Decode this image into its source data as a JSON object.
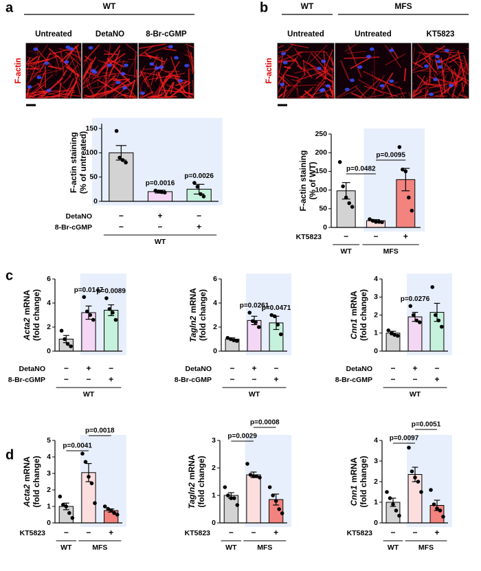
{
  "figure": {
    "panels": [
      "a",
      "b",
      "c",
      "d"
    ],
    "micrographs": [
      {
        "stain": "F-actin",
        "headers": [
          "WT"
        ],
        "columns": [
          "Untreated",
          "DetaNO",
          "8-Br-cGMP"
        ]
      },
      {
        "stain": "F-actin",
        "headers": [
          "WT",
          "MFS"
        ],
        "columns": [
          "Untreated",
          "Untreated",
          "KT5823"
        ]
      }
    ]
  },
  "chart_data": [
    {
      "type": "bar",
      "ylabel": {
        "text": "F-actin staining",
        "line2": "(% of untreated)"
      },
      "ylim": [
        0,
        160
      ],
      "yticks": [
        0,
        50,
        100,
        150
      ],
      "values": [
        100,
        20,
        25
      ],
      "errors": [
        15,
        3,
        10
      ],
      "points": [
        [
          145,
          90,
          85,
          80
        ],
        [
          22,
          20,
          19,
          18
        ],
        [
          38,
          30,
          15,
          10
        ]
      ],
      "colors": [
        "#d3d3d3",
        "#f4d7f4",
        "#c6f1dd"
      ],
      "shaded": [
        0,
        1,
        2
      ],
      "pvalues": [
        {
          "label": "p=0.0016",
          "at": 1
        },
        {
          "label": "p=0.0026",
          "at": 2
        }
      ],
      "conditions": [
        {
          "label": "DetaNO",
          "signs": [
            "−",
            "+",
            "−"
          ]
        },
        {
          "label": "8-Br-cGMP",
          "signs": [
            "−",
            "−",
            "+"
          ]
        }
      ],
      "groups": [
        {
          "label": "WT",
          "from": 0,
          "to": 2
        }
      ]
    },
    {
      "type": "bar",
      "ylabel": {
        "text": "F-actin staining",
        "line2": "(% of WT)"
      },
      "ylim": [
        0,
        250
      ],
      "yticks": [
        0,
        50,
        100,
        150,
        200,
        250
      ],
      "values": [
        98,
        18,
        128
      ],
      "errors": [
        22,
        3,
        30
      ],
      "points": [
        [
          175,
          110,
          80,
          65,
          55
        ],
        [
          22,
          18,
          15,
          15,
          14
        ],
        [
          215,
          155,
          150,
          80,
          45
        ]
      ],
      "colors": [
        "#d3d3d3",
        "#fcdede",
        "#f2837f"
      ],
      "shaded": [
        1,
        2
      ],
      "pvalues": [
        {
          "label": "p=0.0482",
          "from": 0,
          "to": 1
        },
        {
          "label": "p=0.0095",
          "from": 1,
          "to": 2
        }
      ],
      "conditions": [
        {
          "label": "KT5823",
          "signs": [
            "−",
            "−",
            "+"
          ]
        }
      ],
      "groups": [
        {
          "label": "WT",
          "from": 0,
          "to": 0
        },
        {
          "label": "MFS",
          "from": 1,
          "to": 2
        }
      ]
    },
    {
      "type": "bar",
      "ylabel": {
        "gene": "Acta2",
        "text": "mRNA",
        "line2": "(fold change)"
      },
      "ylim": [
        0,
        6
      ],
      "yticks": [
        0,
        2,
        4,
        6
      ],
      "values": [
        1.0,
        3.2,
        3.4
      ],
      "errors": [
        0.3,
        0.55,
        0.45
      ],
      "points": [
        [
          1.7,
          1.0,
          0.6,
          0.4
        ],
        [
          4.5,
          3.3,
          3.0,
          2.6
        ],
        [
          4.4,
          3.5,
          3.2,
          2.6
        ]
      ],
      "colors": [
        "#d3d3d3",
        "#f4d7f4",
        "#c6f1dd"
      ],
      "shaded": [
        1,
        2
      ],
      "pvalues": [
        {
          "label": "p=0.0147",
          "at": 1
        },
        {
          "label": "p=0.0089",
          "at": 2
        }
      ],
      "conditions": [
        {
          "label": "DetaNO",
          "signs": [
            "−",
            "+",
            "−"
          ]
        },
        {
          "label": "8-Br-cGMP",
          "signs": [
            "−",
            "−",
            "+"
          ]
        }
      ],
      "groups": [
        {
          "label": "WT",
          "from": 0,
          "to": 2
        }
      ]
    },
    {
      "type": "bar",
      "ylabel": {
        "gene": "Tagln2",
        "text": "mRNA",
        "line2": "(fold change)"
      },
      "ylim": [
        0,
        6
      ],
      "yticks": [
        0,
        2,
        4,
        6
      ],
      "values": [
        1.0,
        2.55,
        2.35
      ],
      "errors": [
        0.1,
        0.35,
        0.55
      ],
      "points": [
        [
          1.1,
          1.0,
          0.9,
          0.85
        ],
        [
          3.2,
          2.5,
          2.4,
          2.0
        ],
        [
          3.0,
          2.9,
          2.2,
          1.4
        ]
      ],
      "colors": [
        "#d3d3d3",
        "#f4d7f4",
        "#c6f1dd"
      ],
      "shaded": [
        1,
        2
      ],
      "pvalues": [
        {
          "label": "p=0.0261",
          "at": 1
        },
        {
          "label": "p=0.0471",
          "at": 2
        }
      ],
      "conditions": [
        {
          "label": "DetaNO",
          "signs": [
            "−",
            "+",
            "−"
          ]
        },
        {
          "label": "8-Br-cGMP",
          "signs": [
            "−",
            "−",
            "+"
          ]
        }
      ],
      "groups": [
        {
          "label": "WT",
          "from": 0,
          "to": 2
        }
      ]
    },
    {
      "type": "bar",
      "ylabel": {
        "gene": "Cnn1",
        "text": "mRNA",
        "line2": "(fold change)"
      },
      "ylim": [
        0,
        4
      ],
      "yticks": [
        0,
        1,
        2,
        3,
        4
      ],
      "values": [
        1.0,
        1.9,
        2.15
      ],
      "errors": [
        0.1,
        0.25,
        0.5
      ],
      "points": [
        [
          1.15,
          1.0,
          0.9,
          0.85
        ],
        [
          2.5,
          2.0,
          1.7,
          1.6
        ],
        [
          3.55,
          2.0,
          1.7,
          1.35
        ]
      ],
      "colors": [
        "#d3d3d3",
        "#f4d7f4",
        "#c6f1dd"
      ],
      "shaded": [
        1,
        2
      ],
      "pvalues": [
        {
          "label": "p=0.0276",
          "at": 1
        }
      ],
      "conditions": [
        {
          "label": "DetaNO",
          "signs": [
            "−",
            "+",
            "−"
          ]
        },
        {
          "label": "8-Br-cGMP",
          "signs": [
            "−",
            "−",
            "+"
          ]
        }
      ],
      "groups": [
        {
          "label": "WT",
          "from": 0,
          "to": 2
        }
      ]
    },
    {
      "type": "bar",
      "ylabel": {
        "gene": "Acta2",
        "text": "mRNA",
        "line2": "(fold change)"
      },
      "ylim": [
        0,
        5
      ],
      "yticks": [
        0,
        1,
        2,
        3,
        4,
        5
      ],
      "values": [
        1.0,
        3.05,
        0.75
      ],
      "errors": [
        0.2,
        0.55,
        0.1
      ],
      "points": [
        [
          1.6,
          1.1,
          1.0,
          0.6,
          0.3
        ],
        [
          4.2,
          3.7,
          2.8,
          2.4,
          1.2
        ],
        [
          1.0,
          0.85,
          0.75,
          0.6,
          0.5
        ]
      ],
      "colors": [
        "#d3d3d3",
        "#fcdede",
        "#f2837f"
      ],
      "shaded": [
        1,
        2
      ],
      "pvalues": [
        {
          "label": "p=0.0041",
          "from": 0,
          "to": 1
        },
        {
          "label": "p=0.0018",
          "from": 1,
          "to": 2
        }
      ],
      "conditions": [
        {
          "label": "KT5823",
          "signs": [
            "−",
            "−",
            "+"
          ]
        }
      ],
      "groups": [
        {
          "label": "WT",
          "from": 0,
          "to": 0
        },
        {
          "label": "MFS",
          "from": 1,
          "to": 2
        }
      ]
    },
    {
      "type": "bar",
      "ylabel": {
        "gene": "Tagln2",
        "text": "mRNA",
        "line2": "(fold change)"
      },
      "ylim": [
        0,
        3
      ],
      "yticks": [
        0,
        1,
        2,
        3
      ],
      "values": [
        1.0,
        1.75,
        0.85
      ],
      "errors": [
        0.1,
        0.1,
        0.2
      ],
      "points": [
        [
          1.3,
          1.0,
          0.9,
          0.9,
          0.65
        ],
        [
          2.15,
          1.75,
          1.7,
          1.7,
          1.65
        ],
        [
          1.3,
          1.0,
          0.8,
          0.5,
          0.35
        ]
      ],
      "colors": [
        "#d3d3d3",
        "#fcdede",
        "#f2837f"
      ],
      "shaded": [
        1,
        2
      ],
      "pvalues": [
        {
          "label": "p=0.0029",
          "from": 0,
          "to": 1
        },
        {
          "label": "p=0.0008",
          "from": 1,
          "to": 2
        }
      ],
      "conditions": [
        {
          "label": "KT5823",
          "signs": [
            "−",
            "−",
            "+"
          ]
        }
      ],
      "groups": [
        {
          "label": "WT",
          "from": 0,
          "to": 0
        },
        {
          "label": "MFS",
          "from": 1,
          "to": 2
        }
      ]
    },
    {
      "type": "bar",
      "ylabel": {
        "gene": "Cnn1",
        "text": "mRNA",
        "line2": "(fold change)"
      },
      "ylim": [
        0,
        4
      ],
      "yticks": [
        0,
        1,
        2,
        3,
        4
      ],
      "values": [
        1.0,
        2.35,
        0.85
      ],
      "errors": [
        0.2,
        0.35,
        0.25
      ],
      "points": [
        [
          1.5,
          1.2,
          0.9,
          0.6,
          0.35
        ],
        [
          3.65,
          2.5,
          2.2,
          2.0,
          1.5
        ],
        [
          1.6,
          0.9,
          0.7,
          0.6,
          0.3
        ]
      ],
      "colors": [
        "#d3d3d3",
        "#fcdede",
        "#f2837f"
      ],
      "shaded": [
        1,
        2
      ],
      "pvalues": [
        {
          "label": "p=0.0097",
          "from": 0,
          "to": 1
        },
        {
          "label": "p=0.0051",
          "from": 1,
          "to": 2
        }
      ],
      "conditions": [
        {
          "label": "KT5823",
          "signs": [
            "−",
            "−",
            "+"
          ]
        }
      ],
      "groups": [
        {
          "label": "WT",
          "from": 0,
          "to": 0
        },
        {
          "label": "MFS",
          "from": 1,
          "to": 2
        }
      ]
    }
  ]
}
